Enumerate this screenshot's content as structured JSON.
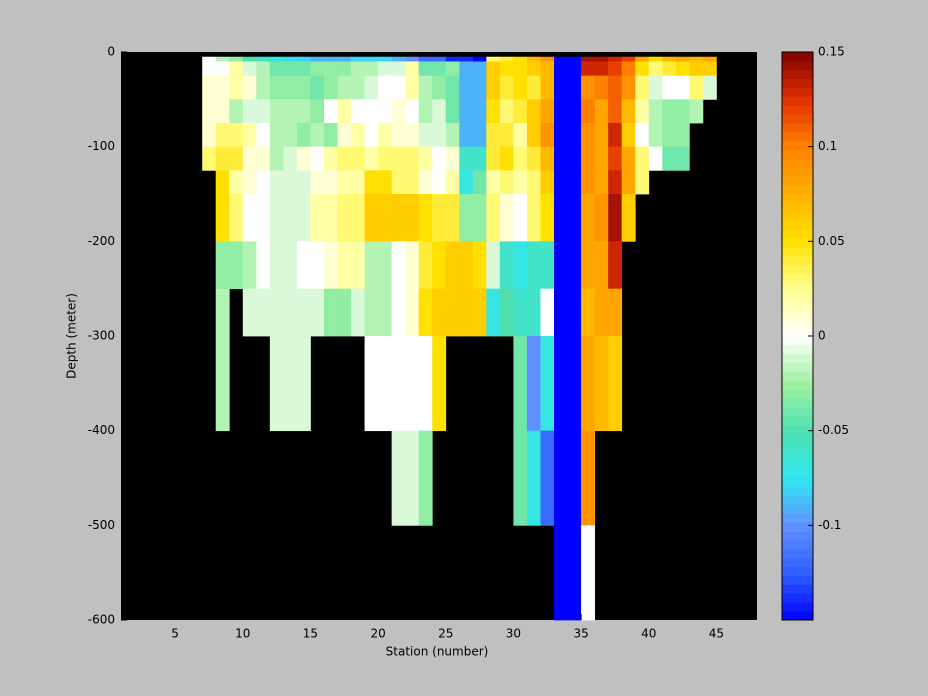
{
  "chart_data": {
    "type": "heatmap",
    "xlabel": "Station (number)",
    "ylabel": "Depth (meter)",
    "x": [
      1,
      2,
      3,
      4,
      5,
      6,
      7,
      8,
      9,
      10,
      11,
      12,
      13,
      14,
      15,
      16,
      17,
      18,
      19,
      20,
      21,
      22,
      23,
      24,
      25,
      26,
      27,
      28,
      29,
      30,
      31,
      32,
      33,
      34,
      35,
      36,
      37,
      38,
      39,
      40,
      41,
      42,
      43,
      44,
      45,
      46,
      47
    ],
    "ybins": [
      -5,
      -10,
      -25,
      -50,
      -75,
      -100,
      -125,
      -150,
      -200,
      -250,
      -300,
      -400,
      -500,
      -600
    ],
    "xlim": [
      1,
      48
    ],
    "ylim": [
      -600,
      0
    ],
    "xticks": [
      5,
      10,
      15,
      20,
      25,
      30,
      35,
      40,
      45
    ],
    "yticks": [
      0,
      -100,
      -200,
      -300,
      -400,
      -500,
      -600
    ],
    "clim": [
      -0.15,
      0.15
    ],
    "cticks": [
      0.15,
      0.1,
      0.05,
      0,
      -0.05,
      -0.1
    ],
    "colormap": [
      "#0000ff",
      "#3060ff",
      "#6090ff",
      "#30e8f0",
      "#50e0b0",
      "#a0f0a0",
      "#ffffff",
      "#ffff90",
      "#ffe000",
      "#ffb000",
      "#ff8000",
      "#e03000",
      "#800000"
    ],
    "missing_color": "#000000",
    "z": [
      [
        null,
        null,
        null,
        null,
        null,
        null,
        0,
        -0.02,
        -0.03,
        -0.05,
        -0.06,
        -0.07,
        -0.08,
        -0.08,
        -0.09,
        -0.09,
        -0.09,
        -0.08,
        -0.08,
        -0.08,
        -0.09,
        -0.1,
        -0.12,
        -0.12,
        -0.14,
        -0.14,
        -0.15,
        0.03,
        0.04,
        0.05,
        0.07,
        0.09,
        -0.15,
        -0.15,
        0.14,
        0.14,
        0.13,
        0.12,
        0.08,
        0.05,
        0.07,
        0.08,
        0.07,
        0.08,
        null,
        null,
        null
      ],
      [
        null,
        null,
        null,
        null,
        null,
        null,
        0,
        0,
        0.02,
        -0.01,
        -0.02,
        -0.04,
        -0.04,
        -0.04,
        -0.03,
        -0.03,
        -0.03,
        -0.02,
        -0.02,
        -0.01,
        -0.01,
        0.02,
        -0.04,
        -0.04,
        -0.03,
        -0.09,
        -0.09,
        0.06,
        0.05,
        0.05,
        0.06,
        0.07,
        -0.15,
        -0.15,
        0.13,
        0.13,
        0.12,
        0.1,
        0.05,
        0.03,
        0.04,
        0.05,
        0.06,
        0.06,
        null,
        null,
        null
      ],
      [
        null,
        null,
        null,
        null,
        null,
        null,
        0.01,
        0.01,
        0.02,
        0.01,
        -0.02,
        -0.03,
        -0.03,
        -0.03,
        -0.04,
        -0.03,
        -0.02,
        -0.02,
        -0.01,
        0,
        0,
        0.02,
        -0.02,
        -0.03,
        -0.04,
        -0.09,
        -0.09,
        0.06,
        0.04,
        0.05,
        0.04,
        0.07,
        -0.15,
        -0.15,
        0.09,
        0.1,
        0.11,
        0.09,
        0.03,
        -0.01,
        0,
        0,
        0.03,
        -0.01,
        null,
        null,
        null
      ],
      [
        null,
        null,
        null,
        null,
        null,
        null,
        0.01,
        0.01,
        -0.02,
        -0.01,
        -0.01,
        -0.02,
        -0.02,
        -0.02,
        -0.03,
        0,
        0.02,
        0,
        0,
        0,
        0.01,
        0,
        -0.02,
        -0.01,
        -0.04,
        -0.09,
        -0.09,
        0.05,
        0.03,
        0.04,
        0.06,
        0.08,
        -0.15,
        -0.15,
        0.1,
        0.08,
        0.11,
        0.07,
        0.02,
        -0.02,
        -0.03,
        -0.03,
        -0.02,
        null,
        null,
        null,
        null
      ],
      [
        null,
        null,
        null,
        null,
        null,
        null,
        0.01,
        0.03,
        0.03,
        0.02,
        0,
        -0.02,
        -0.02,
        -0.03,
        -0.02,
        -0.03,
        0.01,
        0.02,
        0,
        0.02,
        0.01,
        0.01,
        -0.01,
        -0.01,
        -0.02,
        -0.09,
        -0.09,
        0.04,
        0.04,
        0.02,
        0.06,
        0.09,
        -0.15,
        -0.15,
        0.09,
        0.08,
        0.13,
        0.06,
        0,
        -0.02,
        -0.03,
        -0.03,
        null,
        null,
        null,
        null,
        null
      ],
      [
        null,
        null,
        null,
        null,
        null,
        null,
        0.03,
        0.04,
        0.04,
        0.01,
        0.01,
        -0.02,
        -0.01,
        0.01,
        0,
        0.02,
        0.03,
        0.03,
        0.02,
        0.03,
        0.03,
        0.03,
        0.02,
        0,
        0.01,
        -0.06,
        -0.06,
        0.04,
        0.05,
        0.03,
        0.04,
        0.07,
        -0.15,
        -0.15,
        0.09,
        0.08,
        0.12,
        0.08,
        0.03,
        0,
        -0.04,
        -0.04,
        null,
        null,
        null,
        null,
        null
      ],
      [
        null,
        null,
        null,
        null,
        null,
        null,
        null,
        0.05,
        0.02,
        0.01,
        0,
        -0.01,
        -0.01,
        -0.01,
        0.01,
        0.01,
        0.02,
        0.02,
        0.05,
        0.05,
        0.03,
        0.03,
        0.01,
        0,
        0.02,
        -0.07,
        -0.04,
        0.02,
        0.03,
        0.02,
        0.03,
        0.06,
        -0.15,
        -0.15,
        0.09,
        0.08,
        0.13,
        0.08,
        0.03,
        null,
        null,
        null,
        null,
        null,
        null,
        null,
        null
      ],
      [
        null,
        null,
        null,
        null,
        null,
        null,
        null,
        0.05,
        0.03,
        0,
        0,
        -0.01,
        -0.01,
        -0.01,
        0.02,
        0.02,
        0.03,
        0.03,
        0.06,
        0.06,
        0.06,
        0.06,
        0.05,
        0.04,
        0.04,
        -0.03,
        -0.03,
        0.03,
        0.01,
        0,
        0.03,
        0.05,
        -0.15,
        -0.15,
        0.08,
        0.09,
        0.14,
        0.06,
        null,
        null,
        null,
        null,
        null,
        null,
        null,
        null,
        null
      ],
      [
        null,
        null,
        null,
        null,
        null,
        null,
        null,
        -0.03,
        -0.03,
        -0.02,
        0,
        -0.01,
        -0.01,
        0,
        0,
        0.01,
        0.02,
        0.02,
        -0.02,
        -0.02,
        0,
        0.01,
        0.04,
        0.05,
        0.06,
        0.06,
        0.05,
        -0.01,
        -0.06,
        -0.07,
        -0.06,
        -0.06,
        -0.15,
        -0.15,
        0.08,
        0.08,
        0.13,
        null,
        null,
        null,
        null,
        null,
        null,
        null,
        null,
        null,
        null
      ],
      [
        null,
        null,
        null,
        null,
        null,
        null,
        null,
        -0.02,
        null,
        -0.01,
        -0.01,
        -0.01,
        -0.01,
        -0.01,
        -0.01,
        -0.03,
        -0.03,
        -0.01,
        -0.02,
        -0.02,
        0,
        0.01,
        0.05,
        0.06,
        0.06,
        0.06,
        0.06,
        -0.07,
        -0.05,
        -0.06,
        -0.06,
        0,
        -0.15,
        -0.15,
        0.07,
        0.08,
        0.08,
        null,
        null,
        null,
        null,
        null,
        null,
        null,
        null,
        null,
        null
      ],
      [
        null,
        null,
        null,
        null,
        null,
        null,
        null,
        -0.02,
        null,
        null,
        null,
        -0.01,
        -0.01,
        -0.01,
        null,
        null,
        null,
        null,
        0,
        0,
        0,
        0,
        0,
        0.05,
        null,
        null,
        null,
        null,
        null,
        -0.04,
        -0.1,
        -0.07,
        -0.15,
        -0.15,
        0.08,
        0.07,
        0.06,
        null,
        null,
        null,
        null,
        null,
        null,
        null,
        null,
        null,
        null
      ],
      [
        null,
        null,
        null,
        null,
        null,
        null,
        null,
        null,
        null,
        null,
        null,
        null,
        null,
        null,
        null,
        null,
        null,
        null,
        null,
        null,
        -0.01,
        -0.01,
        -0.03,
        null,
        null,
        null,
        null,
        null,
        null,
        -0.04,
        -0.07,
        -0.12,
        -0.15,
        -0.15,
        0.09,
        null,
        null,
        null,
        null,
        null,
        null,
        null,
        null,
        null,
        null,
        null,
        null
      ],
      [
        null,
        null,
        null,
        null,
        null,
        null,
        null,
        null,
        null,
        null,
        null,
        null,
        null,
        null,
        null,
        null,
        null,
        null,
        null,
        null,
        null,
        null,
        null,
        null,
        null,
        null,
        null,
        null,
        null,
        null,
        null,
        null,
        -0.15,
        -0.15,
        0,
        null,
        null,
        null,
        null,
        null,
        null,
        null,
        null,
        null,
        null,
        null,
        null
      ]
    ]
  }
}
